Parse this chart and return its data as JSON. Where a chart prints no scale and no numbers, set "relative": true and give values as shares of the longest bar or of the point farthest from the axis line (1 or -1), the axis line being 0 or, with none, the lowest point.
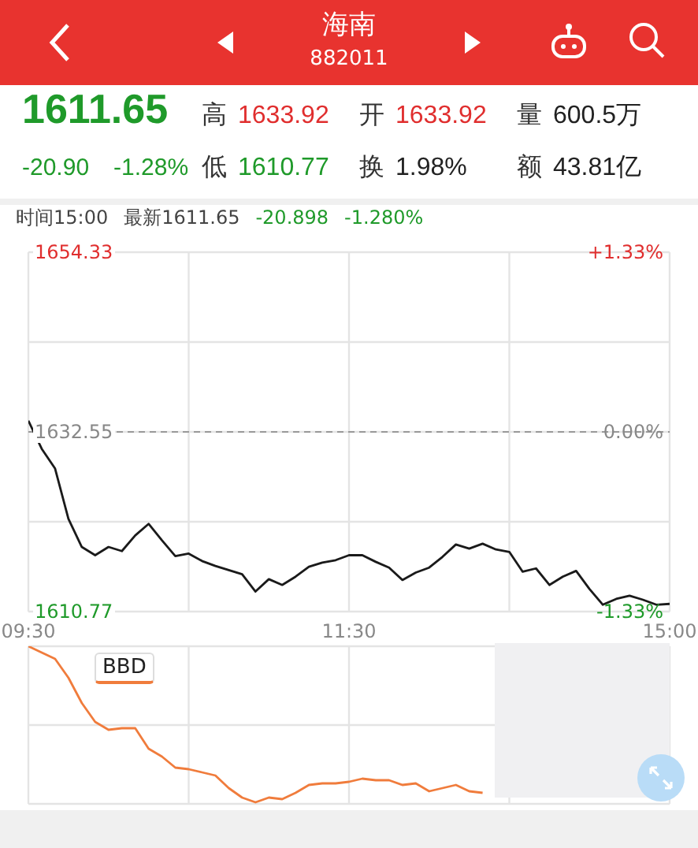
{
  "chart_data": [
    {
      "type": "other",
      "title": "海南",
      "subtitle": "882011",
      "annotations": [
        "1611.65",
        "-20.90",
        "-1.28%",
        "高",
        "1633.92",
        "低",
        "1610.77",
        "开",
        "1633.92",
        "换",
        "1.98%",
        "量",
        "600.5万",
        "额",
        "43.81亿"
      ]
    },
    {
      "type": "line",
      "annotations": [
        "时间15:00",
        "最新1611.65",
        "-20.898",
        "-1.280%"
      ],
      "categories": [
        "09:30",
        null,
        null,
        null,
        null,
        null,
        null,
        null,
        null,
        null,
        null,
        null,
        null,
        null,
        null,
        null,
        null,
        null,
        null,
        null,
        null,
        null,
        null,
        null,
        "11:30",
        null,
        null,
        null,
        null,
        null,
        null,
        null,
        null,
        null,
        null,
        null,
        null,
        null,
        null,
        null,
        null,
        null,
        null,
        null,
        null,
        null,
        null,
        null,
        "15:00"
      ],
      "series": [
        {
          "color": "#1a1a1a",
          "values": [
            1633.9,
            1630.5,
            1628.1,
            1622.0,
            1618.6,
            1617.6,
            1618.6,
            1618.1,
            1620.0,
            1621.4,
            1619.4,
            1617.5,
            1617.8,
            1616.9,
            1616.3,
            1615.8,
            1615.3,
            1613.2,
            1614.7,
            1614.0,
            1615.0,
            1616.2,
            1616.7,
            1617.0,
            1617.6,
            1617.6,
            1616.8,
            1616.1,
            1614.6,
            1615.5,
            1616.1,
            1617.4,
            1618.9,
            1618.4,
            1619.0,
            1618.3,
            1618.0,
            1615.6,
            1616.0,
            1614.0,
            1615.0,
            1615.7,
            1613.5,
            1611.6,
            1612.3,
            1612.7,
            1612.2,
            1611.6,
            1611.7
          ]
        }
      ],
      "ylim": [
        1610.77,
        1654.33
      ],
      "yticks": [
        1654.33,
        {
          "value": 1643.44,
          "label": null
        },
        1632.55,
        {
          "value": 1621.66,
          "label": null
        },
        1610.77
      ],
      "y2lim": [
        -1.33,
        1.33
      ],
      "y2ticks": [
        {
          "value": 1.33,
          "label": "+1.33%"
        },
        {
          "value": 0,
          "label": "0.00%"
        },
        {
          "value": -1.33,
          "label": "-1.33%"
        }
      ],
      "ref_lines": [
        {
          "axis": "y",
          "value": 1632.55,
          "line_style": "dashed",
          "color": "#9a9a9a"
        }
      ],
      "grid": true,
      "marker": "none",
      "line_style": "solid"
    },
    {
      "type": "line",
      "relative": true,
      "legend": "top left",
      "categories": [
        null,
        null,
        null,
        null,
        null,
        null,
        null,
        null,
        null,
        null,
        null,
        null,
        null,
        null,
        null,
        null,
        null,
        null,
        null,
        null,
        null,
        null,
        null,
        null,
        null,
        null,
        null,
        null,
        null,
        null,
        null,
        null,
        null,
        null,
        null,
        null,
        null,
        null,
        null,
        null,
        null,
        null,
        null,
        null,
        null,
        null,
        null,
        null,
        null
      ],
      "series": [
        {
          "name": "BBD",
          "color": "#f07c3c",
          "values": [
            1.0,
            0.96,
            0.92,
            0.8,
            0.64,
            0.52,
            0.47,
            0.48,
            0.48,
            0.35,
            0.3,
            0.23,
            0.22,
            0.2,
            0.18,
            0.1,
            0.04,
            0.01,
            0.04,
            0.03,
            0.07,
            0.12,
            0.13,
            0.13,
            0.14,
            0.16,
            0.15,
            0.15,
            0.12,
            0.13,
            0.08,
            0.1,
            0.12,
            0.08,
            0.07,
            null,
            null,
            null,
            null,
            null,
            null,
            null,
            null,
            null,
            null,
            null,
            null,
            null,
            null
          ]
        }
      ],
      "grid": true,
      "marker": "none",
      "line_style": "solid"
    }
  ]
}
